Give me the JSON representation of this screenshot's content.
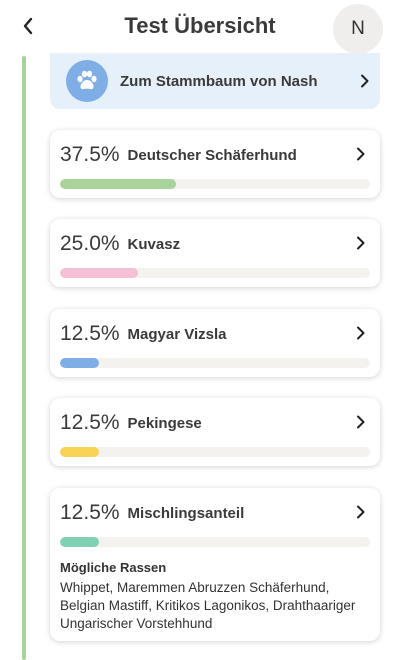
{
  "header": {
    "title": "Test Übersicht",
    "avatar_initial": "N"
  },
  "pedigree": {
    "label": "Zum Stammbaum von Nash"
  },
  "breeds": [
    {
      "percent_label": "37.5%",
      "name": "Deutscher Schäferhund",
      "fraction": 0.375,
      "color": "#a8d39a"
    },
    {
      "percent_label": "25.0%",
      "name": "Kuvasz",
      "fraction": 0.25,
      "color": "#f5c0d6"
    },
    {
      "percent_label": "12.5%",
      "name": "Magyar Vizsla",
      "fraction": 0.125,
      "color": "#7faee6"
    },
    {
      "percent_label": "12.5%",
      "name": "Pekingese",
      "fraction": 0.125,
      "color": "#f9d354"
    },
    {
      "percent_label": "12.5%",
      "name": "Mischlingsanteil",
      "fraction": 0.125,
      "color": "#7fd1b4"
    }
  ],
  "mixed": {
    "title": "Mögliche Rassen",
    "list": "Whippet, Maremmen Abruzzen Schäferhund, Belgian Mastiff, Kritikos Lagonikos, Drahthaariger Ungarischer Vorstehhund"
  }
}
